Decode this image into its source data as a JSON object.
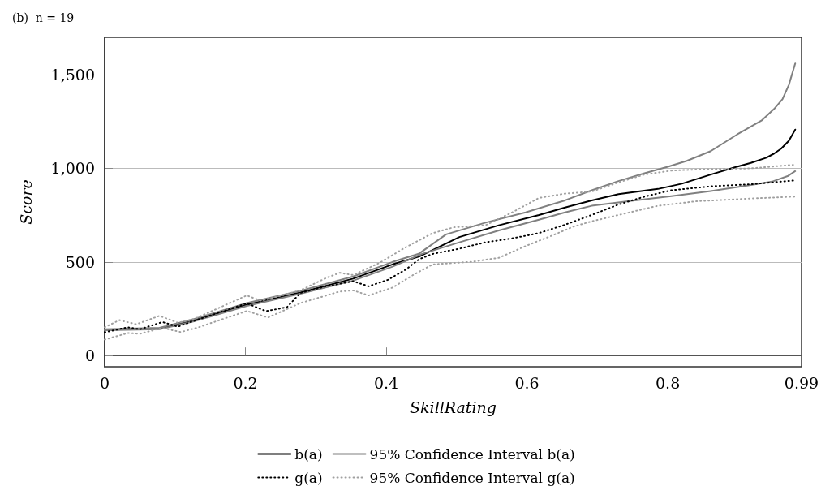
{
  "chart_data": {
    "type": "line",
    "title": "(b)  n = 19",
    "xlabel": "SkillRating",
    "ylabel": "Score",
    "xlim": [
      0,
      0.99
    ],
    "ylim": [
      -60,
      1700
    ],
    "xticks": [
      0,
      0.2,
      0.4,
      0.6,
      0.8,
      0.99
    ],
    "yticks": [
      0,
      500,
      {
        "value": 1000,
        "label": "1,000"
      },
      {
        "value": 1500,
        "label": "1,500"
      }
    ],
    "grid": "y",
    "legend": "bottom",
    "marker": "none",
    "series": [
      {
        "name": "b(a)",
        "color": "#000000",
        "line_style": "solid",
        "x": [
          0,
          0.078,
          0.127,
          0.202,
          0.278,
          0.353,
          0.409,
          0.447,
          0.504,
          0.56,
          0.617,
          0.654,
          0.692,
          0.73,
          0.786,
          0.82,
          0.861,
          0.895,
          0.918,
          0.94,
          0.951,
          0.961,
          0.972,
          0.981
        ],
        "values": [
          137,
          145,
          189,
          272,
          337,
          411,
          487,
          529,
          633,
          696,
          751,
          791,
          829,
          862,
          890,
          918,
          967,
          1005,
          1029,
          1057,
          1079,
          1105,
          1147,
          1207
        ]
      },
      {
        "name": "95% Confidence Interval b(a)",
        "color": "#808080",
        "line_style": "solid",
        "x": [
          0,
          0.078,
          0.127,
          0.202,
          0.278,
          0.353,
          0.409,
          0.447,
          0.485,
          0.541,
          0.598,
          0.654,
          0.692,
          0.73,
          0.767,
          0.801,
          0.827,
          0.861,
          0.899,
          0.933,
          0.951,
          0.963,
          0.972,
          0.981
        ],
        "values": [
          140,
          148,
          195,
          280,
          345,
          422,
          500,
          545,
          647,
          710,
          765,
          829,
          883,
          932,
          974,
          1010,
          1040,
          1092,
          1182,
          1255,
          1317,
          1370,
          1446,
          1560
        ]
      },
      {
        "color": "#808080",
        "line_style": "solid",
        "x": [
          0,
          0.078,
          0.127,
          0.202,
          0.278,
          0.353,
          0.409,
          0.451,
          0.504,
          0.56,
          0.617,
          0.654,
          0.692,
          0.741,
          0.805,
          0.861,
          0.918,
          0.948,
          0.971,
          0.981
        ],
        "values": [
          135,
          140,
          183,
          265,
          330,
          400,
          475,
          543,
          605,
          668,
          726,
          765,
          800,
          823,
          851,
          879,
          911,
          929,
          960,
          985
        ]
      },
      {
        "name": "g(a)",
        "color": "#000000",
        "line_style": "dotted",
        "x": [
          0,
          0.033,
          0.05,
          0.082,
          0.104,
          0.127,
          0.202,
          0.229,
          0.259,
          0.278,
          0.315,
          0.353,
          0.375,
          0.402,
          0.428,
          0.447,
          0.466,
          0.504,
          0.541,
          0.579,
          0.617,
          0.654,
          0.692,
          0.73,
          0.767,
          0.805,
          0.861,
          0.918,
          0.981
        ],
        "values": [
          124,
          151,
          140,
          179,
          154,
          185,
          279,
          237,
          258,
          334,
          370,
          397,
          370,
          404,
          460,
          515,
          543,
          571,
          605,
          626,
          654,
          699,
          751,
          807,
          849,
          883,
          904,
          915,
          936
        ]
      },
      {
        "name": "95% Confidence Interval g(a)",
        "color": "#a0a0a0",
        "line_style": "dotted",
        "x": [
          0,
          0.021,
          0.045,
          0.078,
          0.104,
          0.127,
          0.202,
          0.222,
          0.278,
          0.315,
          0.334,
          0.353,
          0.39,
          0.428,
          0.466,
          0.496,
          0.541,
          0.579,
          0.617,
          0.654,
          0.692,
          0.73,
          0.767,
          0.805,
          0.842,
          0.918,
          0.978
        ],
        "values": [
          151,
          189,
          167,
          212,
          175,
          195,
          321,
          292,
          348,
          415,
          442,
          430,
          494,
          579,
          654,
          685,
          696,
          765,
          842,
          865,
          876,
          925,
          967,
          988,
          994,
          1000,
          1019
        ]
      },
      {
        "color": "#a0a0a0",
        "line_style": "dotted",
        "x": [
          0,
          0.033,
          0.05,
          0.082,
          0.108,
          0.131,
          0.202,
          0.232,
          0.278,
          0.334,
          0.353,
          0.375,
          0.409,
          0.439,
          0.466,
          0.522,
          0.56,
          0.598,
          0.635,
          0.666,
          0.692,
          0.73,
          0.786,
          0.842,
          0.918,
          0.981
        ],
        "values": [
          85,
          120,
          116,
          148,
          125,
          148,
          238,
          203,
          280,
          342,
          348,
          321,
          363,
          432,
          487,
          501,
          522,
          585,
          640,
          689,
          717,
          751,
          800,
          825,
          839,
          849
        ]
      }
    ]
  }
}
